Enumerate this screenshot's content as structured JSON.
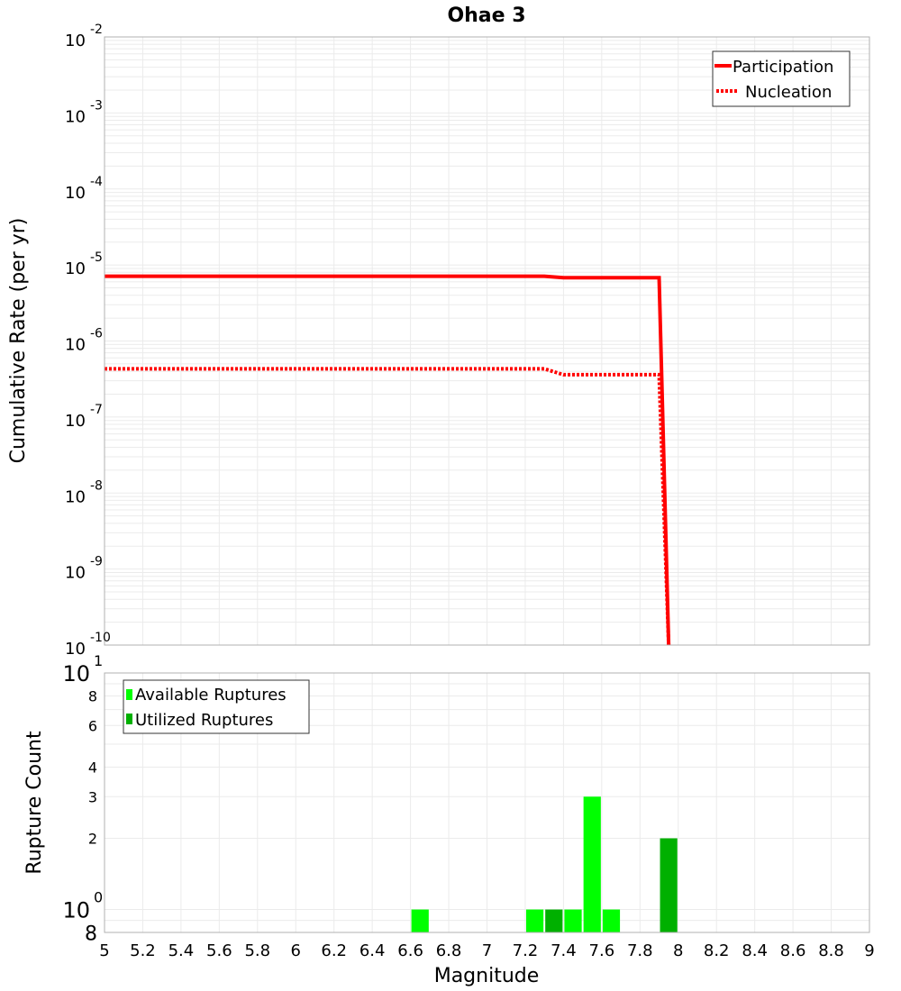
{
  "chart_data": [
    {
      "type": "line",
      "title": "Ohae 3",
      "xlabel": "Magnitude",
      "ylabel": "Cumulative Rate (per yr)",
      "yscale": "log",
      "ylim": [
        1e-10,
        0.01
      ],
      "xlim": [
        5,
        9
      ],
      "grid": true,
      "legend_position": "top-right",
      "y_tick_exponents": [
        -2,
        -3,
        -4,
        -5,
        -6,
        -7,
        -8,
        -9,
        -10
      ],
      "series": [
        {
          "name": "Participation",
          "style": "solid",
          "color": "#ff0000",
          "x": [
            5.0,
            7.3,
            7.4,
            7.9,
            7.95
          ],
          "y": [
            7.1e-06,
            7.1e-06,
            6.8e-06,
            6.8e-06,
            1e-10
          ]
        },
        {
          "name": "Nucleation",
          "style": "dotted",
          "color": "#ff0000",
          "x": [
            5.0,
            7.3,
            7.4,
            7.9,
            7.95
          ],
          "y": [
            4.3e-07,
            4.3e-07,
            3.6e-07,
            3.6e-07,
            1e-10
          ]
        }
      ]
    },
    {
      "type": "bar",
      "title": "",
      "xlabel": "Magnitude",
      "ylabel": "Rupture Count",
      "yscale": "log",
      "ylim": [
        0.8,
        10
      ],
      "xlim": [
        5,
        9
      ],
      "grid": true,
      "legend_position": "top-left",
      "y_tick_labels": [
        "10^1",
        "8",
        "6",
        "4",
        "3",
        "2",
        "10^0",
        "8"
      ],
      "x_tick_labels": [
        "5",
        "5.2",
        "5.4",
        "5.6",
        "5.8",
        "6",
        "6.2",
        "6.4",
        "6.6",
        "6.8",
        "7",
        "7.2",
        "7.4",
        "7.6",
        "7.8",
        "8",
        "8.2",
        "8.4",
        "8.6",
        "8.8",
        "9"
      ],
      "bin_width": 0.1,
      "series": [
        {
          "name": "Available Ruptures",
          "color": "#00ff00",
          "x": [
            6.65,
            7.25,
            7.45,
            7.55,
            7.65
          ],
          "values": [
            1,
            1,
            1,
            3,
            1
          ]
        },
        {
          "name": "Utilized Ruptures",
          "color": "#00b000",
          "x": [
            7.35,
            7.95
          ],
          "values": [
            1,
            2
          ]
        }
      ]
    }
  ],
  "labels": {
    "title": "Ohae 3",
    "top_ylabel": "Cumulative Rate (per yr)",
    "bottom_ylabel": "Rupture Count",
    "xlabel": "Magnitude",
    "legend_top": [
      "Participation",
      "Nucleation"
    ],
    "legend_bottom": [
      "Available Ruptures",
      "Utilized Ruptures"
    ]
  }
}
